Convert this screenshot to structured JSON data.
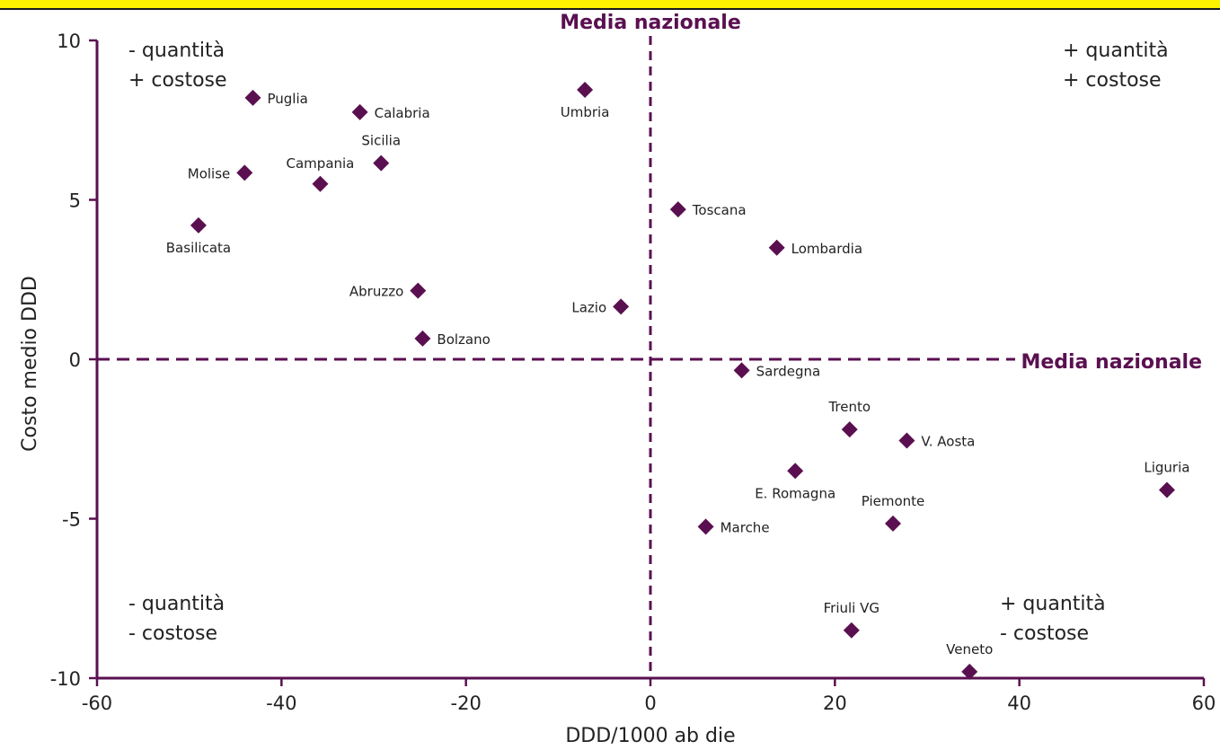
{
  "chart_data": {
    "type": "scatter",
    "xlabel": "DDD/1000 ab die",
    "ylabel": "Costo medio DDD",
    "xlim": [
      -60,
      60
    ],
    "ylim": [
      -10,
      10
    ],
    "xticks": [
      -60,
      -40,
      -20,
      0,
      20,
      40,
      60
    ],
    "yticks": [
      -10,
      -5,
      0,
      5,
      10
    ],
    "xtick_labels": [
      "-60",
      "-40",
      "-20",
      "0",
      "20",
      "40",
      "60"
    ],
    "ytick_labels": [
      "-10",
      "-5",
      "0",
      "5",
      "10"
    ],
    "grid": false,
    "marker_color": "#5a1050",
    "reference_lines": {
      "vertical": {
        "value": 0,
        "label": "Media nazionale"
      },
      "horizontal": {
        "value": 0,
        "label": "Media nazionale"
      }
    },
    "quadrant_labels": {
      "top_left": [
        "- quantità",
        "+ costose"
      ],
      "top_right": [
        "+ quantità",
        "+ costose"
      ],
      "bottom_left": [
        "- quantità",
        "- costose"
      ],
      "bottom_right": [
        "+ quantità",
        "- costose"
      ]
    },
    "points": [
      {
        "label": "Puglia",
        "x": -43.1,
        "y": 8.2,
        "pos": "right"
      },
      {
        "label": "Calabria",
        "x": -31.5,
        "y": 7.75,
        "pos": "right"
      },
      {
        "label": "Umbria",
        "x": -7.1,
        "y": 8.45,
        "pos": "below"
      },
      {
        "label": "Sicilia",
        "x": -29.2,
        "y": 6.15,
        "pos": "above"
      },
      {
        "label": "Molise",
        "x": -44.0,
        "y": 5.85,
        "pos": "left"
      },
      {
        "label": "Campania",
        "x": -35.8,
        "y": 5.5,
        "pos": "above-left"
      },
      {
        "label": "Basilicata",
        "x": -49.0,
        "y": 4.2,
        "pos": "below"
      },
      {
        "label": "Toscana",
        "x": 3.0,
        "y": 4.7,
        "pos": "right"
      },
      {
        "label": "Lombardia",
        "x": 13.7,
        "y": 3.5,
        "pos": "right"
      },
      {
        "label": "Abruzzo",
        "x": -25.2,
        "y": 2.15,
        "pos": "left"
      },
      {
        "label": "Lazio",
        "x": -3.2,
        "y": 1.65,
        "pos": "left"
      },
      {
        "label": "Bolzano",
        "x": -24.7,
        "y": 0.65,
        "pos": "right"
      },
      {
        "label": "Sardegna",
        "x": 9.9,
        "y": -0.35,
        "pos": "right"
      },
      {
        "label": "Trento",
        "x": 21.6,
        "y": -2.2,
        "pos": "above"
      },
      {
        "label": "V. Aosta",
        "x": 27.8,
        "y": -2.55,
        "pos": "right"
      },
      {
        "label": "E. Romagna",
        "x": 15.7,
        "y": -3.5,
        "pos": "below"
      },
      {
        "label": "Liguria",
        "x": 56.0,
        "y": -4.1,
        "pos": "above"
      },
      {
        "label": "Piemonte",
        "x": 26.3,
        "y": -5.15,
        "pos": "above"
      },
      {
        "label": "Marche",
        "x": 6.0,
        "y": -5.25,
        "pos": "right"
      },
      {
        "label": "Friuli VG",
        "x": 21.8,
        "y": -8.5,
        "pos": "above"
      },
      {
        "label": "Veneto",
        "x": 34.6,
        "y": -9.8,
        "pos": "above"
      }
    ]
  }
}
